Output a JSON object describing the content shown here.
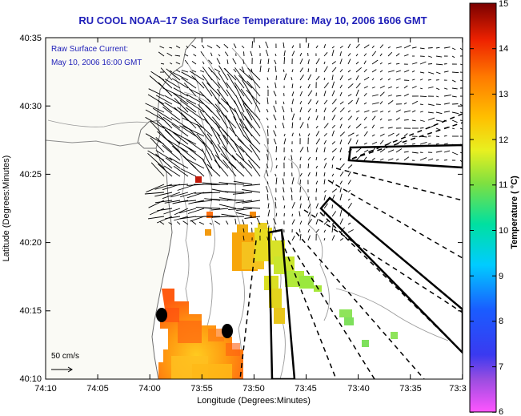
{
  "title": "RU COOL  NOAA–17  Sea Surface Temperature:  May 10, 2006 1606 GMT",
  "overlay": {
    "current_label": "Raw Surface Current:",
    "current_time": "May 10, 2006 16:00 GMT",
    "scale_label": "50 cm/s"
  },
  "axes": {
    "x_label": "Longitude (Degrees:Minutes)",
    "y_label": "Latitude (Degrees:Minutes)",
    "x_ticks": [
      "74:10",
      "74:05",
      "74:00",
      "73:55",
      "73:50",
      "73:45",
      "73:40",
      "73:35",
      "73:3"
    ],
    "y_ticks": [
      "40:35",
      "40:30",
      "40:25",
      "40:20",
      "40:15",
      "40:10"
    ]
  },
  "colorbar": {
    "label": "Temperature ( °C)",
    "ticks": [
      "15",
      "14",
      "13",
      "12",
      "11",
      "10",
      "9",
      "8",
      "7",
      "6"
    ]
  },
  "colors": {
    "title": "#1f1fb8",
    "land": "#fafaf5",
    "contour": "#9a9a9a"
  }
}
